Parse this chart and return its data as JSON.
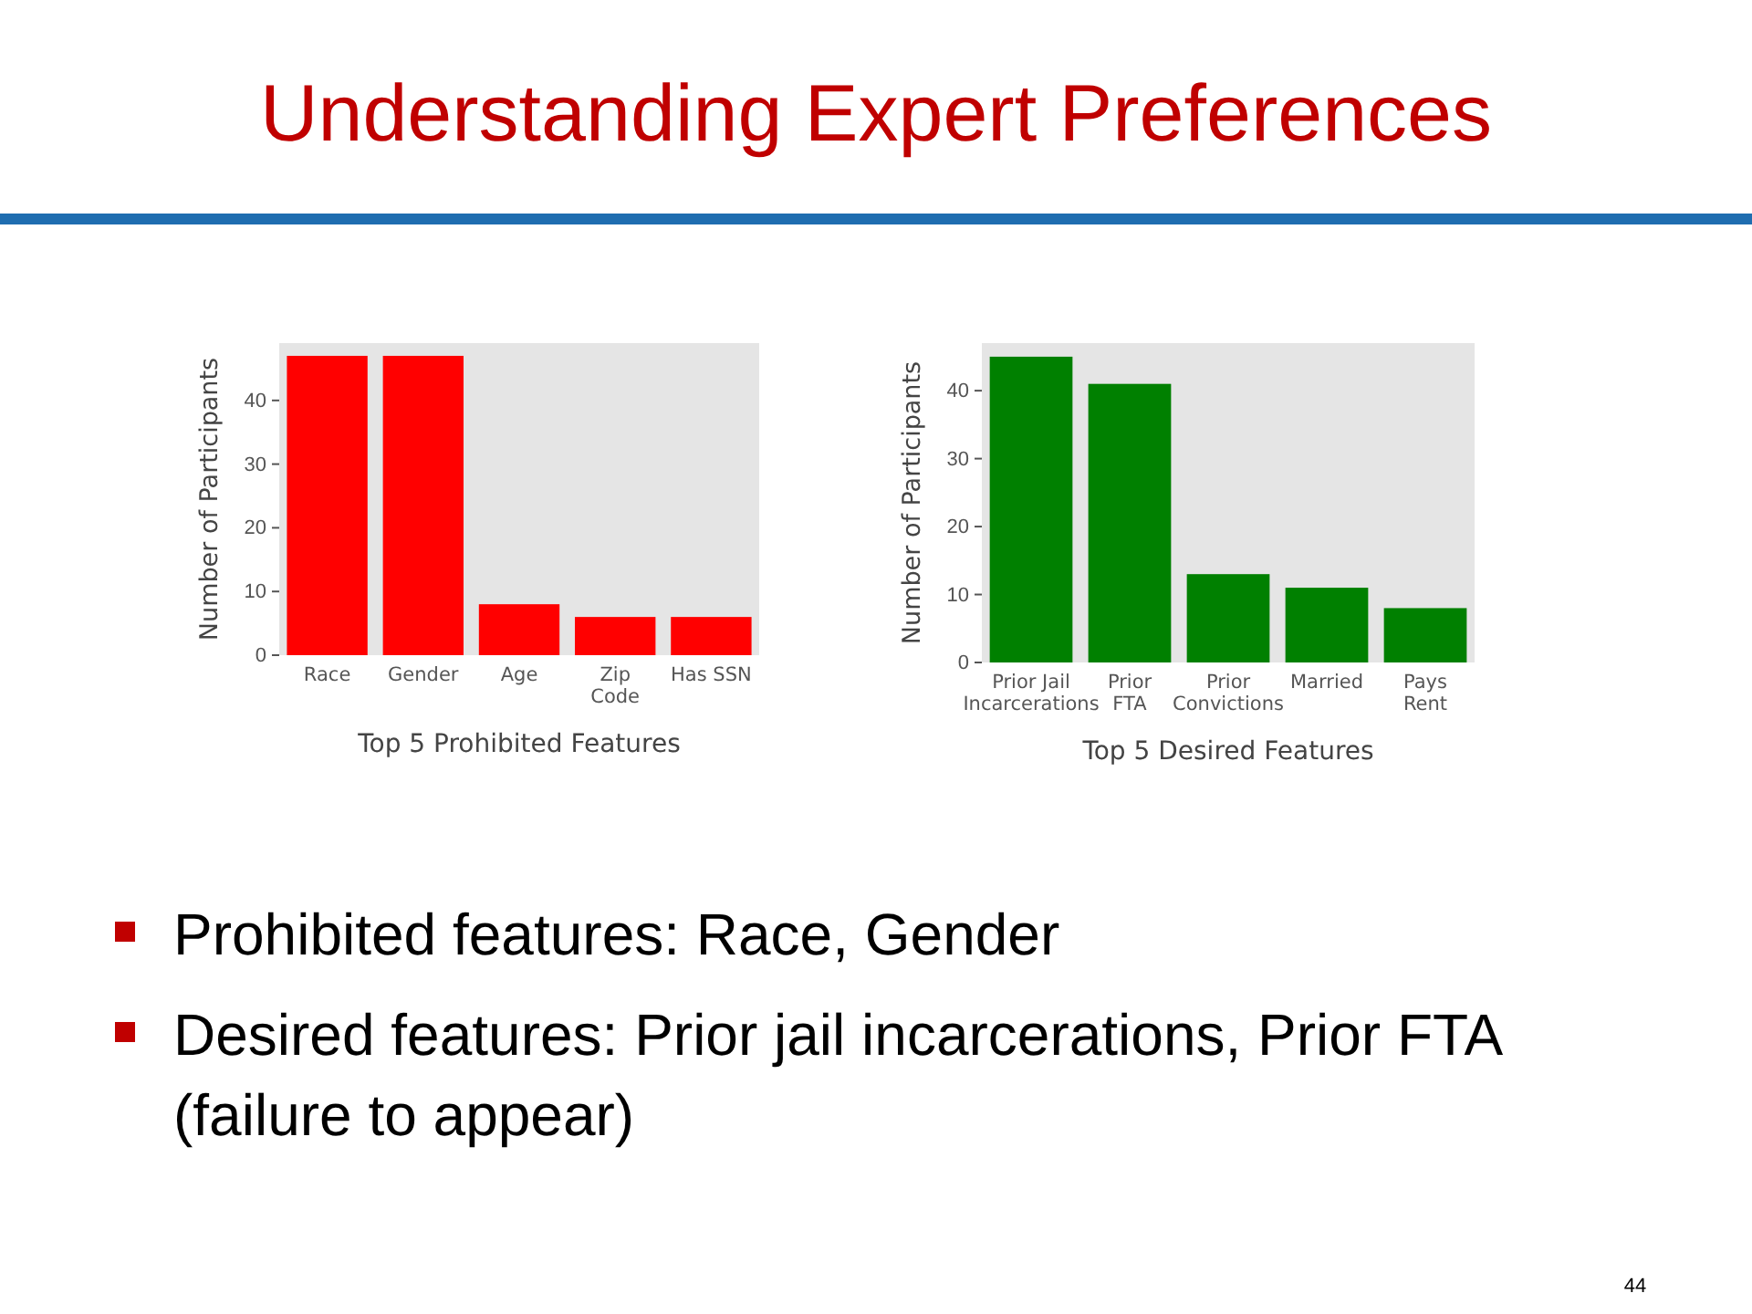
{
  "chart_data": [
    {
      "type": "other",
      "title": "Understanding Expert Preferences",
      "annotations": [
        "Prohibited features: Race, Gender",
        "Desired features: Prior jail incarcerations, Prior FTA (failure to appear)",
        "44"
      ]
    },
    {
      "type": "bar",
      "xlabel": "Top 5 Prohibited Features",
      "ylabel": "Number of Participants",
      "categories": [
        "Race",
        "Gender",
        "Age",
        "Zip\nCode",
        "Has SSN"
      ],
      "values": [
        47,
        47,
        8,
        6,
        6
      ],
      "color": "#ff0000",
      "ylim": [
        0,
        49
      ],
      "yticks": [
        0,
        10,
        20,
        30,
        40
      ]
    },
    {
      "type": "bar",
      "xlabel": "Top 5 Desired Features",
      "ylabel": "Number of Participants",
      "categories": [
        "Prior Jail\nIncarcerations",
        "Prior\nFTA",
        "Prior\nConvictions",
        "Married",
        "Pays\nRent"
      ],
      "values": [
        45,
        41,
        13,
        11,
        8
      ],
      "color": "#008000",
      "ylim": [
        0,
        47
      ],
      "yticks": [
        0,
        10,
        20,
        30,
        40
      ]
    }
  ]
}
